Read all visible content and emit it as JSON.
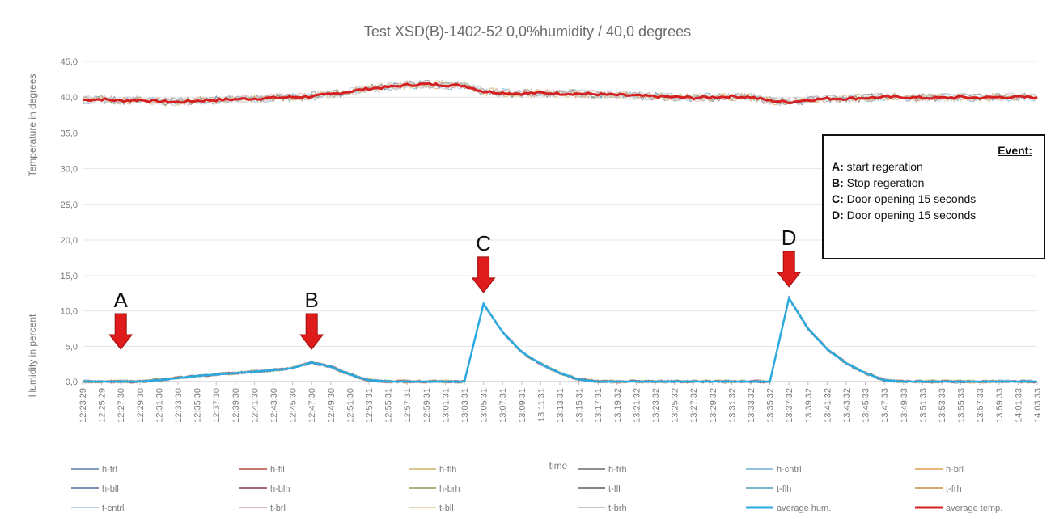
{
  "chart_data": {
    "type": "line",
    "title": "Test  XSD(B)-1402-52  0,0%humidity / 40,0 degrees",
    "xlabel": "time",
    "temperature_axis": {
      "label": "Temperature in degrees",
      "ticks": [
        "45,0",
        "40,0",
        "35,0",
        "30,0",
        "25,0",
        "20,0"
      ],
      "range": [
        20,
        45
      ]
    },
    "humidity_axis": {
      "label": "Humidity in percent",
      "ticks": [
        "15,0",
        "10,0",
        "5,0",
        "0,0"
      ],
      "range": [
        0,
        15
      ]
    },
    "x_ticks": [
      "12:23:29",
      "12:25:29",
      "12:27:30",
      "12:29:30",
      "12:31:30",
      "12:33:30",
      "12:35:30",
      "12:37:30",
      "12:39:30",
      "12:41:30",
      "12:43:30",
      "12:45:30",
      "12:47:30",
      "12:49:30",
      "12:51:30",
      "12:53:31",
      "12:55:31",
      "12:57:31",
      "12:59:31",
      "13:01:31",
      "13:03:31",
      "13:05:31",
      "13:07:31",
      "13:09:31",
      "13:11:31",
      "13:13:31",
      "13:15:31",
      "13:17:31",
      "13:19:32",
      "13:21:32",
      "13:23:32",
      "13:25:32",
      "13:27:32",
      "13:29:32",
      "13:31:32",
      "13:33:32",
      "13:35:32",
      "13:37:32",
      "13:39:32",
      "13:41:32",
      "13:43:32",
      "13:45:33",
      "13:47:33",
      "13:49:33",
      "13:51:33",
      "13:53:33",
      "13:55:33",
      "13:57:33",
      "13:59:33",
      "14:01:33",
      "14:03:33"
    ],
    "average_temp": [
      39.6,
      39.7,
      39.5,
      39.6,
      39.4,
      39.3,
      39.5,
      39.6,
      39.7,
      39.8,
      39.9,
      40.0,
      40.1,
      40.4,
      40.8,
      41.2,
      41.4,
      41.7,
      41.8,
      41.7,
      41.6,
      40.8,
      40.6,
      40.5,
      40.6,
      40.5,
      40.5,
      40.4,
      40.3,
      40.2,
      40.1,
      40.0,
      39.9,
      40.0,
      40.1,
      40.0,
      39.5,
      39.3,
      39.6,
      39.8,
      39.8,
      39.9,
      40.0,
      40.0,
      39.9,
      39.9,
      40.0,
      39.9,
      40.0,
      40.0,
      40.0
    ],
    "average_hum": [
      0,
      0,
      0,
      0,
      0.2,
      0.5,
      0.8,
      1.0,
      1.2,
      1.4,
      1.6,
      1.9,
      2.7,
      2.1,
      1.0,
      0.2,
      0,
      0,
      0,
      0,
      0,
      11.0,
      7.0,
      4.2,
      2.5,
      1.2,
      0.3,
      0,
      0,
      0,
      0,
      0,
      0,
      0,
      0,
      0,
      0,
      11.8,
      7.5,
      4.6,
      2.6,
      1.2,
      0.2,
      0,
      0,
      0,
      0,
      0,
      0,
      0,
      0
    ],
    "markers": [
      {
        "label": "A",
        "index": 2
      },
      {
        "label": "B",
        "index": 12
      },
      {
        "label": "C",
        "index": 21
      },
      {
        "label": "D",
        "index": 37
      }
    ],
    "event_box": {
      "title": "Event:",
      "items": [
        {
          "key": "A:",
          "text": "start regeration"
        },
        {
          "key": "B:",
          "text": "Stop regeration"
        },
        {
          "key": "C:",
          "text": "Door opening 15 seconds"
        },
        {
          "key": "D:",
          "text": "Door opening 15 seconds"
        }
      ]
    },
    "legend": [
      {
        "name": "h-frl",
        "color": "#5b7fa8"
      },
      {
        "name": "h-fll",
        "color": "#b04a3c"
      },
      {
        "name": "h-flh",
        "color": "#c9b36a"
      },
      {
        "name": "h-frh",
        "color": "#6a6a6a"
      },
      {
        "name": "h-cntrl",
        "color": "#6fb0d6"
      },
      {
        "name": "h-brl",
        "color": "#e3a052"
      },
      {
        "name": "h-bll",
        "color": "#4a6f93"
      },
      {
        "name": "h-blh",
        "color": "#8b3a52"
      },
      {
        "name": "h-brh",
        "color": "#8a9a5b"
      },
      {
        "name": "t-fll",
        "color": "#5a5a5a"
      },
      {
        "name": "t-flh",
        "color": "#4f9cbf"
      },
      {
        "name": "t-frh",
        "color": "#c98a3a"
      },
      {
        "name": "t-cntrl",
        "color": "#9cc0e0"
      },
      {
        "name": "t-brl",
        "color": "#d49a9a"
      },
      {
        "name": "t-bll",
        "color": "#d8cc8e"
      },
      {
        "name": "t-brh",
        "color": "#b0b0b0"
      },
      {
        "name": "average hum.",
        "color": "#2aa8e0"
      },
      {
        "name": "average temp.",
        "color": "#d62020"
      }
    ],
    "colors": {
      "average_temp": "#d62020",
      "average_hum": "#2aa8e0",
      "arrow": "#e01b1b",
      "grid": "#e4e4e4"
    }
  }
}
